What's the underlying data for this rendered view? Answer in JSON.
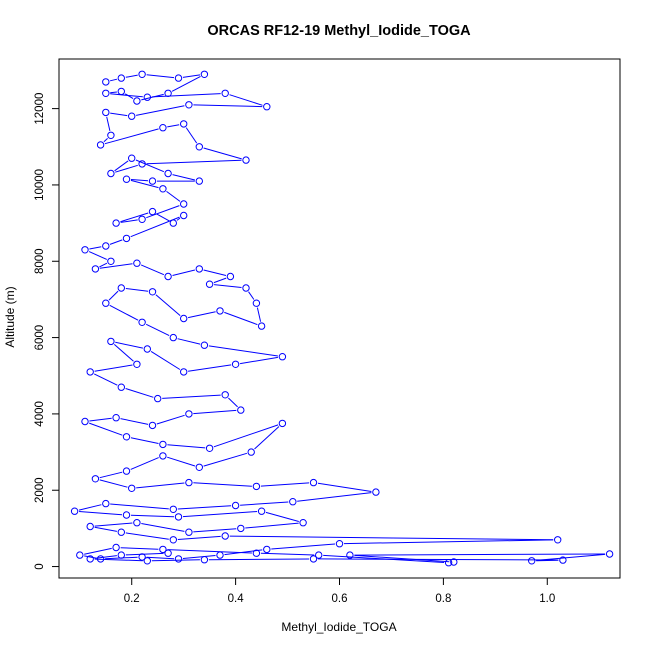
{
  "chart_data": {
    "type": "line",
    "title": "ORCAS RF12-19 Methyl_Iodide_TOGA",
    "xlabel": "Methyl_Iodide_TOGA",
    "ylabel": "Altitude (m)",
    "xlim": [
      0.06,
      1.14
    ],
    "ylim": [
      -300,
      13300
    ],
    "x_ticks": [
      0.2,
      0.4,
      0.6,
      0.8,
      1.0
    ],
    "x_tick_labels": [
      "0.2",
      "0.4",
      "0.6",
      "0.8",
      "1.0"
    ],
    "y_ticks": [
      0,
      2000,
      4000,
      6000,
      8000,
      10000,
      12000
    ],
    "y_tick_labels": [
      "0",
      "2000",
      "4000",
      "6000",
      "8000",
      "10000",
      "12000"
    ],
    "grid": false,
    "legend": "none",
    "marker": "open-circle",
    "color": "#0000ff",
    "series": [
      {
        "points": [
          [
            0.15,
            12700
          ],
          [
            0.18,
            12800
          ],
          [
            0.22,
            12900
          ],
          [
            0.29,
            12800
          ],
          [
            0.34,
            12900
          ],
          [
            0.27,
            12400
          ],
          [
            0.21,
            12200
          ],
          [
            0.18,
            12450
          ],
          [
            0.15,
            12400
          ],
          [
            0.23,
            12300
          ],
          [
            0.38,
            12400
          ],
          [
            0.46,
            12050
          ],
          [
            0.31,
            12100
          ],
          [
            0.2,
            11800
          ],
          [
            0.15,
            11900
          ],
          [
            0.16,
            11300
          ],
          [
            0.14,
            11050
          ],
          [
            0.26,
            11500
          ],
          [
            0.3,
            11600
          ],
          [
            0.33,
            11000
          ],
          [
            0.42,
            10650
          ],
          [
            0.22,
            10550
          ],
          [
            0.16,
            10300
          ],
          [
            0.2,
            10700
          ],
          [
            0.27,
            10300
          ],
          [
            0.33,
            10100
          ],
          [
            0.24,
            10100
          ],
          [
            0.19,
            10150
          ],
          [
            0.26,
            9900
          ],
          [
            0.3,
            9500
          ],
          [
            0.22,
            9100
          ],
          [
            0.17,
            9000
          ],
          [
            0.24,
            9300
          ],
          [
            0.28,
            9000
          ],
          [
            0.3,
            9200
          ],
          [
            0.19,
            8600
          ],
          [
            0.15,
            8400
          ],
          [
            0.11,
            8300
          ],
          [
            0.16,
            8000
          ],
          [
            0.13,
            7800
          ],
          [
            0.21,
            7950
          ],
          [
            0.27,
            7600
          ],
          [
            0.33,
            7800
          ],
          [
            0.39,
            7600
          ],
          [
            0.35,
            7400
          ],
          [
            0.42,
            7300
          ],
          [
            0.44,
            6900
          ],
          [
            0.45,
            6300
          ],
          [
            0.37,
            6700
          ],
          [
            0.3,
            6500
          ],
          [
            0.24,
            7200
          ],
          [
            0.18,
            7300
          ],
          [
            0.15,
            6900
          ],
          [
            0.22,
            6400
          ],
          [
            0.28,
            6000
          ],
          [
            0.34,
            5800
          ],
          [
            0.49,
            5500
          ],
          [
            0.4,
            5300
          ],
          [
            0.3,
            5100
          ],
          [
            0.23,
            5700
          ],
          [
            0.16,
            5900
          ],
          [
            0.21,
            5300
          ],
          [
            0.12,
            5100
          ],
          [
            0.18,
            4700
          ],
          [
            0.25,
            4400
          ],
          [
            0.38,
            4500
          ],
          [
            0.41,
            4100
          ],
          [
            0.31,
            4000
          ],
          [
            0.24,
            3700
          ],
          [
            0.17,
            3900
          ],
          [
            0.11,
            3800
          ],
          [
            0.19,
            3400
          ],
          [
            0.26,
            3200
          ],
          [
            0.35,
            3100
          ],
          [
            0.49,
            3750
          ],
          [
            0.43,
            3000
          ],
          [
            0.33,
            2600
          ],
          [
            0.26,
            2900
          ],
          [
            0.19,
            2500
          ],
          [
            0.13,
            2300
          ],
          [
            0.2,
            2050
          ],
          [
            0.31,
            2200
          ],
          [
            0.44,
            2100
          ],
          [
            0.55,
            2200
          ],
          [
            0.67,
            1950
          ],
          [
            0.51,
            1700
          ],
          [
            0.4,
            1600
          ],
          [
            0.28,
            1500
          ],
          [
            0.15,
            1650
          ],
          [
            0.09,
            1450
          ],
          [
            0.19,
            1350
          ],
          [
            0.29,
            1300
          ],
          [
            0.45,
            1450
          ],
          [
            0.53,
            1150
          ],
          [
            0.41,
            1000
          ],
          [
            0.31,
            900
          ],
          [
            0.21,
            1150
          ],
          [
            0.12,
            1050
          ],
          [
            0.18,
            900
          ],
          [
            0.28,
            700
          ],
          [
            0.38,
            800
          ],
          [
            1.02,
            700
          ],
          [
            0.6,
            600
          ],
          [
            0.46,
            450
          ],
          [
            0.37,
            300
          ],
          [
            0.29,
            200
          ],
          [
            0.22,
            250
          ],
          [
            0.14,
            200
          ],
          [
            0.1,
            300
          ],
          [
            0.17,
            500
          ],
          [
            0.26,
            450
          ],
          [
            0.44,
            350
          ],
          [
            0.56,
            300
          ],
          [
            0.81,
            100
          ],
          [
            0.82,
            120
          ],
          [
            0.62,
            300
          ],
          [
            1.12,
            330
          ],
          [
            0.97,
            150
          ],
          [
            1.03,
            170
          ],
          [
            0.55,
            200
          ],
          [
            0.34,
            180
          ],
          [
            0.23,
            150
          ],
          [
            0.12,
            200
          ],
          [
            0.18,
            300
          ],
          [
            0.27,
            350
          ]
        ]
      }
    ]
  }
}
